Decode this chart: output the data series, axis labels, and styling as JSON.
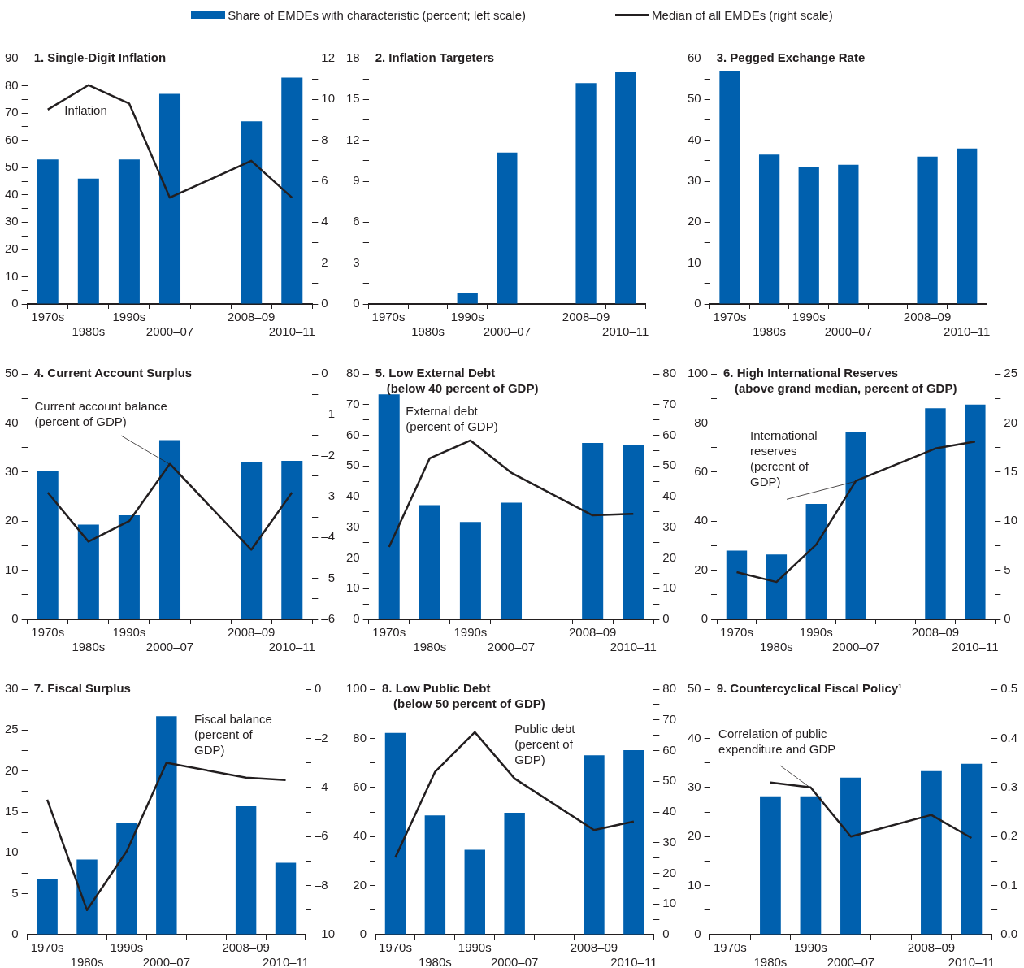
{
  "chart_data": [
    {
      "type": "bar",
      "title": "1. Single-Digit Inflation",
      "legend": "top",
      "categories": [
        "1970s",
        "1980s",
        "1990s",
        "2000–07",
        null,
        "2008–09",
        "2010–11"
      ],
      "series": [
        {
          "name": "Share of EMDEs with characteristic (percent; left scale)",
          "color": "#0060ae",
          "values": [
            53,
            46,
            53,
            77,
            null,
            67,
            83
          ]
        },
        {
          "type": "line",
          "axis": "y2",
          "name": "Median of all EMDEs (right scale)",
          "color": "#231f20",
          "values": [
            9.5,
            10.7,
            9.8,
            5.2,
            null,
            7.0,
            5.2
          ]
        }
      ],
      "ylim": [
        0,
        90
      ],
      "yticks": [
        0,
        {
          "value": 5,
          "label": null
        },
        10,
        {
          "value": 15,
          "label": null
        },
        20,
        {
          "value": 25,
          "label": null
        },
        30,
        {
          "value": 35,
          "label": null
        },
        40,
        {
          "value": 45,
          "label": null
        },
        50,
        {
          "value": 55,
          "label": null
        },
        60,
        {
          "value": 65,
          "label": null
        },
        70,
        {
          "value": 75,
          "label": null
        },
        80,
        {
          "value": 85,
          "label": null
        },
        90
      ],
      "y2lim": [
        0,
        12
      ],
      "y2ticks": [
        0,
        {
          "value": 1,
          "label": null
        },
        2,
        {
          "value": 3,
          "label": null
        },
        4,
        {
          "value": 5,
          "label": null
        },
        6,
        {
          "value": 7,
          "label": null
        },
        8,
        {
          "value": 9,
          "label": null
        },
        10,
        {
          "value": 11,
          "label": null
        },
        12
      ],
      "annotations": [
        "Inflation"
      ]
    },
    {
      "type": "bar",
      "title": "2. Inflation Targeters",
      "categories": [
        "1970s",
        "1980s",
        "1990s",
        "2000–07",
        null,
        "2008–09",
        "2010–11"
      ],
      "series": [
        {
          "color": "#0060ae",
          "values": [
            0,
            0,
            0.8,
            11.1,
            null,
            16.2,
            17
          ]
        }
      ],
      "ylim": [
        0,
        18
      ],
      "yticks": [
        0,
        {
          "value": 1.5,
          "label": null
        },
        3,
        {
          "value": 4.5,
          "label": null
        },
        6,
        {
          "value": 7.5,
          "label": null
        },
        9,
        {
          "value": 10.5,
          "label": null
        },
        12,
        {
          "value": 13.5,
          "label": null
        },
        15,
        {
          "value": 16.5,
          "label": null
        },
        18
      ]
    },
    {
      "type": "bar",
      "title": "3. Pegged Exchange Rate",
      "categories": [
        "1970s",
        "1980s",
        "1990s",
        "2000–07",
        null,
        "2008–09",
        "2010–11"
      ],
      "series": [
        {
          "color": "#0060ae",
          "values": [
            57,
            36.5,
            33.5,
            34,
            null,
            36,
            38
          ]
        }
      ],
      "ylim": [
        0,
        60
      ],
      "yticks": [
        0,
        {
          "value": 5,
          "label": null
        },
        10,
        {
          "value": 15,
          "label": null
        },
        20,
        {
          "value": 25,
          "label": null
        },
        30,
        {
          "value": 35,
          "label": null
        },
        40,
        {
          "value": 45,
          "label": null
        },
        50,
        {
          "value": 55,
          "label": null
        },
        60
      ]
    },
    {
      "type": "bar",
      "title": "4. Current Account Surplus",
      "categories": [
        "1970s",
        "1980s",
        "1990s",
        "2000–07",
        null,
        "2008–09",
        "2010–11"
      ],
      "series": [
        {
          "color": "#0060ae",
          "values": [
            30.2,
            19.3,
            21.2,
            36.5,
            null,
            32,
            32.3
          ]
        },
        {
          "type": "line",
          "axis": "y2",
          "color": "#231f20",
          "values": [
            -2.9,
            -4.1,
            -3.6,
            -2.2,
            null,
            -4.3,
            -2.9
          ]
        }
      ],
      "ylim": [
        0,
        50
      ],
      "yticks": [
        0,
        {
          "value": 5,
          "label": null
        },
        10,
        {
          "value": 15,
          "label": null
        },
        20,
        {
          "value": 25,
          "label": null
        },
        30,
        {
          "value": 35,
          "label": null
        },
        40,
        {
          "value": 45,
          "label": null
        },
        50
      ],
      "y2lim": [
        -6,
        0
      ],
      "y2ticks": [
        {
          "value": -6,
          "label": "–6"
        },
        {
          "value": -5.5,
          "label": null
        },
        {
          "value": -5,
          "label": "–5"
        },
        {
          "value": -4.5,
          "label": null
        },
        {
          "value": -4,
          "label": "–4"
        },
        {
          "value": -3.5,
          "label": null
        },
        {
          "value": -3,
          "label": "–3"
        },
        {
          "value": -2.5,
          "label": null
        },
        {
          "value": -2,
          "label": "–2"
        },
        {
          "value": -1.5,
          "label": null
        },
        {
          "value": -1,
          "label": "–1"
        },
        {
          "value": -0.5,
          "label": null
        },
        0
      ],
      "annotations": [
        {
          "text": "Current account balance (percent of GDP)",
          "x": "2000–07",
          "y": 31.7
        }
      ]
    },
    {
      "type": "bar",
      "title": "5. Low External Debt",
      "subtitle": "(below 40 percent of GDP)",
      "categories": [
        "1970s",
        "1980s",
        "1990s",
        "2000–07",
        null,
        "2008–09",
        "2010–11"
      ],
      "series": [
        {
          "color": "#0060ae",
          "values": [
            73.3,
            37.2,
            31.7,
            38,
            null,
            57.5,
            56.7
          ]
        },
        {
          "type": "line",
          "axis": "y2",
          "color": "#231f20",
          "values": [
            23.6,
            52.5,
            58.3,
            47.8,
            null,
            33.9,
            34.4
          ]
        }
      ],
      "ylim": [
        0,
        80
      ],
      "yticks": [
        0,
        {
          "value": 5,
          "label": null
        },
        10,
        {
          "value": 15,
          "label": null
        },
        20,
        {
          "value": 25,
          "label": null
        },
        30,
        {
          "value": 35,
          "label": null
        },
        40,
        {
          "value": 45,
          "label": null
        },
        50,
        {
          "value": 55,
          "label": null
        },
        60,
        {
          "value": 65,
          "label": null
        },
        70,
        {
          "value": 75,
          "label": null
        },
        80
      ],
      "y2lim": [
        0,
        80
      ],
      "y2ticks": [
        0,
        {
          "value": 5,
          "label": null
        },
        10,
        {
          "value": 15,
          "label": null
        },
        20,
        {
          "value": 25,
          "label": null
        },
        30,
        {
          "value": 35,
          "label": null
        },
        40,
        {
          "value": 45,
          "label": null
        },
        50,
        {
          "value": 55,
          "label": null
        },
        60,
        {
          "value": 65,
          "label": null
        },
        70,
        {
          "value": 75,
          "label": null
        },
        80
      ],
      "annotations": [
        "External debt (percent of GDP)"
      ]
    },
    {
      "type": "bar",
      "title": "6. High International Reserves",
      "subtitle": "(above grand median, percent of GDP)",
      "categories": [
        "1970s",
        "1980s",
        "1990s",
        "2000–07",
        null,
        "2008–09",
        "2010–11"
      ],
      "series": [
        {
          "color": "#0060ae",
          "values": [
            28,
            26.4,
            47,
            76.4,
            null,
            86,
            87.5
          ]
        },
        {
          "type": "line",
          "axis": "y2",
          "color": "#231f20",
          "values": [
            4.8,
            3.8,
            7.6,
            14.1,
            null,
            17.4,
            18.1
          ]
        }
      ],
      "ylim": [
        0,
        100
      ],
      "yticks": [
        0,
        {
          "value": 10,
          "label": null
        },
        20,
        {
          "value": 30,
          "label": null
        },
        40,
        {
          "value": 50,
          "label": null
        },
        60,
        {
          "value": 70,
          "label": null
        },
        80,
        {
          "value": 90,
          "label": null
        },
        100
      ],
      "y2lim": [
        0,
        25
      ],
      "y2ticks": [
        0,
        {
          "value": 2.5,
          "label": null
        },
        5,
        {
          "value": 7.5,
          "label": null
        },
        10,
        {
          "value": 12.5,
          "label": null
        },
        15,
        {
          "value": 17.5,
          "label": null
        },
        20,
        {
          "value": 22.5,
          "label": null
        },
        25
      ],
      "annotations": [
        {
          "text": "International reserves (percent of GDP)",
          "x": "2000–07",
          "y": 56.4
        }
      ]
    },
    {
      "type": "bar",
      "title": "7. Fiscal Surplus",
      "categories": [
        "1970s",
        "1980s",
        "1990s",
        "2000–07",
        null,
        "2008–09",
        "2010–11"
      ],
      "series": [
        {
          "color": "#0060ae",
          "values": [
            6.8,
            9.2,
            13.6,
            26.7,
            null,
            15.7,
            8.8
          ]
        },
        {
          "type": "line",
          "axis": "y2",
          "color": "#231f20",
          "values": [
            -4.5,
            -9,
            -6.6,
            -3,
            null,
            -3.6,
            -3.7
          ]
        }
      ],
      "ylim": [
        0,
        30
      ],
      "yticks": [
        0,
        {
          "value": 2.5,
          "label": null
        },
        5,
        {
          "value": 7.5,
          "label": null
        },
        10,
        {
          "value": 12.5,
          "label": null
        },
        15,
        {
          "value": 17.5,
          "label": null
        },
        20,
        {
          "value": 22.5,
          "label": null
        },
        25,
        {
          "value": 27.5,
          "label": null
        },
        30
      ],
      "y2lim": [
        -10,
        0
      ],
      "y2ticks": [
        {
          "value": -10,
          "label": "–10"
        },
        {
          "value": -9,
          "label": null
        },
        {
          "value": -8,
          "label": "–8"
        },
        {
          "value": -7,
          "label": null
        },
        {
          "value": -6,
          "label": "–6"
        },
        {
          "value": -5,
          "label": null
        },
        {
          "value": -4,
          "label": "–4"
        },
        {
          "value": -3,
          "label": null
        },
        {
          "value": -2,
          "label": "–2"
        },
        {
          "value": -1,
          "label": null
        },
        0
      ],
      "annotations": [
        "Fiscal balance (percent of GDP)"
      ]
    },
    {
      "type": "bar",
      "title": "8. Low Public Debt",
      "subtitle": "(below 50 percent of GDP)",
      "categories": [
        "1970s",
        "1980s",
        "1990s",
        "2000–07",
        null,
        "2008–09",
        "2010–11"
      ],
      "series": [
        {
          "color": "#0060ae",
          "values": [
            82.2,
            48.6,
            34.6,
            49.7,
            null,
            73.1,
            75.2
          ]
        },
        {
          "type": "line",
          "axis": "y2",
          "color": "#231f20",
          "values": [
            25.2,
            53.1,
            66,
            50.9,
            null,
            34.1,
            36.9
          ]
        }
      ],
      "ylim": [
        0,
        100
      ],
      "yticks": [
        0,
        {
          "value": 10,
          "label": null
        },
        20,
        {
          "value": 30,
          "label": null
        },
        40,
        {
          "value": 50,
          "label": null
        },
        60,
        {
          "value": 70,
          "label": null
        },
        80,
        {
          "value": 90,
          "label": null
        },
        100
      ],
      "y2lim": [
        0,
        80
      ],
      "y2ticks": [
        0,
        {
          "value": 5,
          "label": null
        },
        10,
        {
          "value": 15,
          "label": null
        },
        20,
        {
          "value": 25,
          "label": null
        },
        30,
        {
          "value": 35,
          "label": null
        },
        40,
        {
          "value": 45,
          "label": null
        },
        50,
        {
          "value": 55,
          "label": null
        },
        60,
        {
          "value": 65,
          "label": null
        },
        70,
        {
          "value": 75,
          "label": null
        },
        80
      ],
      "annotations": [
        "Public debt (percent of GDP)"
      ]
    },
    {
      "type": "bar",
      "title": "9. Countercyclical Fiscal Policy¹",
      "categories": [
        "1970s",
        "1980s",
        "1990s",
        "2000–07",
        null,
        "2008–09",
        "2010–11"
      ],
      "series": [
        {
          "color": "#0060ae",
          "values": [
            null,
            28.2,
            28.2,
            32,
            null,
            33.3,
            34.8
          ]
        },
        {
          "type": "line",
          "axis": "y2",
          "color": "#231f20",
          "values": [
            null,
            0.31,
            0.3,
            0.2,
            null,
            0.244,
            0.197
          ]
        }
      ],
      "ylim": [
        0,
        50
      ],
      "yticks": [
        0,
        {
          "value": 5,
          "label": null
        },
        10,
        {
          "value": 15,
          "label": null
        },
        20,
        {
          "value": 25,
          "label": null
        },
        30,
        {
          "value": 35,
          "label": null
        },
        40,
        {
          "value": 45,
          "label": null
        },
        50
      ],
      "y2lim": [
        0,
        0.5
      ],
      "y2ticks": [
        {
          "value": 0,
          "label": "0.0"
        },
        {
          "value": 0.05,
          "label": null
        },
        0.1,
        {
          "value": 0.15,
          "label": null
        },
        0.2,
        {
          "value": 0.25,
          "label": null
        },
        0.3,
        {
          "value": 0.35,
          "label": null
        },
        0.4,
        {
          "value": 0.45,
          "label": null
        },
        0.5
      ],
      "annotations": [
        {
          "text": "Correlation of public expenditure and GDP",
          "x": "1990s",
          "y": 30
        }
      ]
    }
  ]
}
